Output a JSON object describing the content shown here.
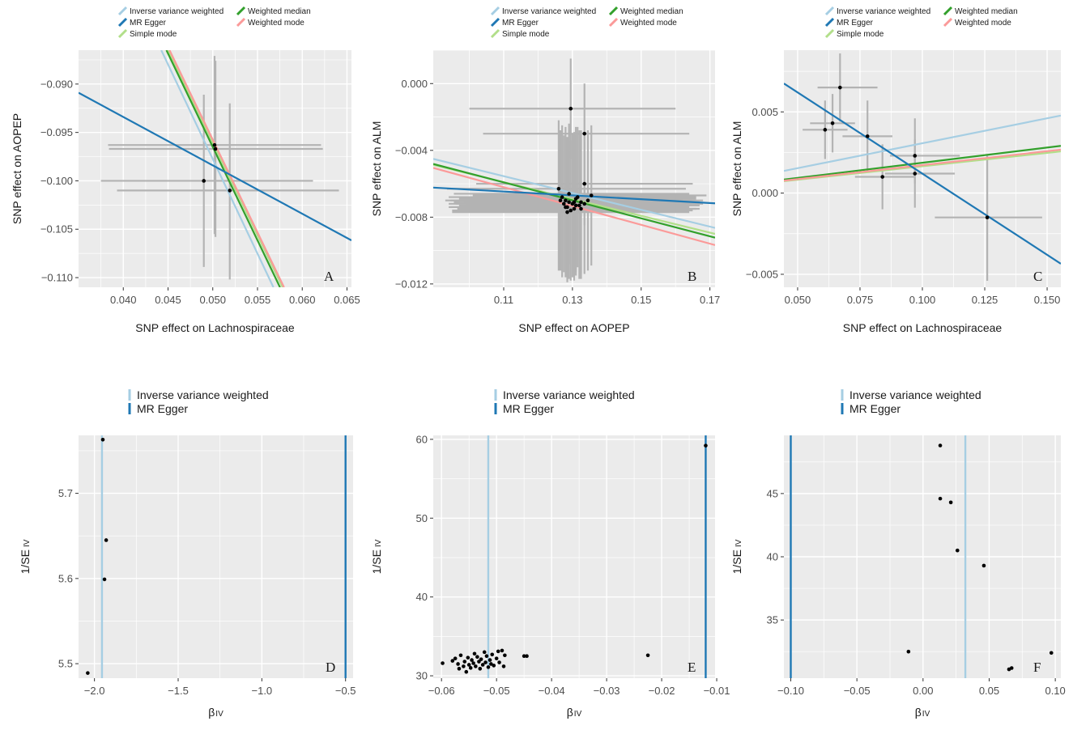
{
  "colors": {
    "panel_bg": "#ebebeb",
    "grid": "#ffffff",
    "errorbar": "#b3b3b3",
    "point": "#000000",
    "ivw": "#a6cee3",
    "egger": "#1f78b4",
    "simple_mode": "#b2df8a",
    "weighted_median": "#33a02c",
    "weighted_mode": "#fb9a99"
  },
  "chart_data": [
    {
      "id": "A",
      "type": "scatter",
      "letter": "A",
      "xlabel": "SNP effect on Lachnospiraceae",
      "ylabel": "SNP effect on AOPEP",
      "xlim": [
        0.035,
        0.0655
      ],
      "ylim": [
        -0.111,
        -0.0865
      ],
      "xticks": [
        0.04,
        0.045,
        0.05,
        0.055,
        0.06,
        0.065
      ],
      "xtick_labels": [
        "0.040",
        "0.045",
        "0.050",
        "0.055",
        "0.060",
        "0.065"
      ],
      "yticks": [
        -0.09,
        -0.095,
        -0.1,
        -0.105,
        -0.11
      ],
      "ytick_labels": [
        "−0.090",
        "−0.095",
        "−0.100",
        "−0.105",
        "−0.110"
      ],
      "points": [
        {
          "x": 0.049,
          "y": -0.1,
          "x_lo": 0.0375,
          "x_hi": 0.0612,
          "y_lo": -0.1089,
          "y_hi": -0.0911
        },
        {
          "x": 0.0502,
          "y": -0.0963,
          "x_lo": 0.0383,
          "x_hi": 0.0621,
          "y_lo": -0.1055,
          "y_hi": -0.0871
        },
        {
          "x": 0.0503,
          "y": -0.0967,
          "x_lo": 0.0384,
          "x_hi": 0.0623,
          "y_lo": -0.1058,
          "y_hi": -0.0876
        },
        {
          "x": 0.0519,
          "y": -0.101,
          "x_lo": 0.0393,
          "x_hi": 0.0641,
          "y_lo": -0.1102,
          "y_hi": -0.092
        }
      ],
      "lines": [
        {
          "method": "Simple mode",
          "slope": -1.915,
          "intercept": -0.0003
        },
        {
          "method": "Inverse variance weighted",
          "slope": -1.955,
          "intercept": 0.0
        },
        {
          "method": "Weighted median",
          "slope": -1.93,
          "intercept": 0.0
        },
        {
          "method": "Weighted mode",
          "slope": -1.915,
          "intercept": 0.0
        },
        {
          "method": "MR Egger",
          "slope": -0.5,
          "intercept": -0.0734
        }
      ],
      "legend": [
        "Inverse variance weighted",
        "MR Egger",
        "Simple mode",
        "Weighted median",
        "Weighted mode"
      ]
    },
    {
      "id": "B",
      "type": "scatter",
      "letter": "B",
      "xlabel": "SNP effect on AOPEP",
      "ylabel": "SNP effect on ALM",
      "xlim": [
        0.0895,
        0.1715
      ],
      "ylim": [
        -0.0122,
        0.002
      ],
      "xticks": [
        0.11,
        0.13,
        0.15,
        0.17
      ],
      "xtick_labels": [
        "0.11",
        "0.13",
        "0.15",
        "0.17"
      ],
      "yticks": [
        0.0,
        -0.004,
        -0.008,
        -0.012
      ],
      "ytick_labels": [
        "0.000",
        "−0.004",
        "−0.008",
        "−0.012"
      ],
      "points": [
        {
          "x": 0.1295,
          "y": -0.0015,
          "x_lo": 0.1,
          "x_hi": 0.16,
          "y_lo": -0.0045,
          "y_hi": 0.0015
        },
        {
          "x": 0.1335,
          "y": -0.003,
          "x_lo": 0.104,
          "x_hi": 0.164,
          "y_lo": -0.006,
          "y_hi": 0.0
        },
        {
          "x": 0.1335,
          "y": -0.006,
          "x_lo": 0.102,
          "x_hi": 0.165,
          "y_lo": -0.0085,
          "y_hi": -0.0035
        },
        {
          "x": 0.126,
          "y": -0.0063,
          "x_lo": 0.0935,
          "x_hi": 0.163,
          "y_lo": -0.0112,
          "y_hi": -0.0022
        },
        {
          "x": 0.127,
          "y": -0.0068,
          "x_lo": 0.094,
          "x_hi": 0.164,
          "y_lo": -0.0116,
          "y_hi": -0.0025
        },
        {
          "x": 0.128,
          "y": -0.007,
          "x_lo": 0.0945,
          "x_hi": 0.165,
          "y_lo": -0.0113,
          "y_hi": -0.0026
        },
        {
          "x": 0.129,
          "y": -0.0071,
          "x_lo": 0.0955,
          "x_hi": 0.165,
          "y_lo": -0.0117,
          "y_hi": -0.0028
        },
        {
          "x": 0.13,
          "y": -0.0072,
          "x_lo": 0.096,
          "x_hi": 0.166,
          "y_lo": -0.0116,
          "y_hi": -0.003
        },
        {
          "x": 0.131,
          "y": -0.0069,
          "x_lo": 0.097,
          "x_hi": 0.166,
          "y_lo": -0.0113,
          "y_hi": -0.0026
        },
        {
          "x": 0.132,
          "y": -0.0073,
          "x_lo": 0.098,
          "x_hi": 0.167,
          "y_lo": -0.0117,
          "y_hi": -0.0028
        },
        {
          "x": 0.1285,
          "y": -0.0074,
          "x_lo": 0.0945,
          "x_hi": 0.164,
          "y_lo": -0.0116,
          "y_hi": -0.0032
        },
        {
          "x": 0.1305,
          "y": -0.0075,
          "x_lo": 0.0965,
          "x_hi": 0.166,
          "y_lo": -0.0118,
          "y_hi": -0.0033
        },
        {
          "x": 0.1325,
          "y": -0.0071,
          "x_lo": 0.0985,
          "x_hi": 0.167,
          "y_lo": -0.0114,
          "y_hi": -0.0028
        },
        {
          "x": 0.1275,
          "y": -0.0072,
          "x_lo": 0.094,
          "x_hi": 0.163,
          "y_lo": -0.0113,
          "y_hi": -0.0031
        },
        {
          "x": 0.1295,
          "y": -0.0076,
          "x_lo": 0.095,
          "x_hi": 0.165,
          "y_lo": -0.0118,
          "y_hi": -0.0034
        },
        {
          "x": 0.1315,
          "y": -0.0068,
          "x_lo": 0.0975,
          "x_hi": 0.166,
          "y_lo": -0.011,
          "y_hi": -0.0026
        },
        {
          "x": 0.1335,
          "y": -0.0072,
          "x_lo": 0.099,
          "x_hi": 0.168,
          "y_lo": -0.0114,
          "y_hi": -0.003
        },
        {
          "x": 0.1345,
          "y": -0.007,
          "x_lo": 0.1,
          "x_hi": 0.168,
          "y_lo": -0.0112,
          "y_hi": -0.0028
        },
        {
          "x": 0.1265,
          "y": -0.007,
          "x_lo": 0.093,
          "x_hi": 0.162,
          "y_lo": -0.0112,
          "y_hi": -0.0028
        },
        {
          "x": 0.129,
          "y": -0.0066,
          "x_lo": 0.0955,
          "x_hi": 0.164,
          "y_lo": -0.0108,
          "y_hi": -0.0024
        },
        {
          "x": 0.1305,
          "y": -0.0071,
          "x_lo": 0.097,
          "x_hi": 0.165,
          "y_lo": -0.0113,
          "y_hi": -0.0029
        },
        {
          "x": 0.1285,
          "y": -0.0077,
          "x_lo": 0.095,
          "x_hi": 0.164,
          "y_lo": -0.0119,
          "y_hi": -0.0035
        },
        {
          "x": 0.1325,
          "y": -0.0075,
          "x_lo": 0.099,
          "x_hi": 0.167,
          "y_lo": -0.0117,
          "y_hi": -0.0033
        },
        {
          "x": 0.131,
          "y": -0.0073,
          "x_lo": 0.097,
          "x_hi": 0.166,
          "y_lo": -0.0115,
          "y_hi": -0.0031
        },
        {
          "x": 0.1355,
          "y": -0.0067,
          "x_lo": 0.101,
          "x_hi": 0.169,
          "y_lo": -0.0109,
          "y_hi": -0.0025
        },
        {
          "x": 0.128,
          "y": -0.0074,
          "x_lo": 0.094,
          "x_hi": 0.163,
          "y_lo": -0.0116,
          "y_hi": -0.0032
        }
      ],
      "lines": [
        {
          "method": "Simple mode",
          "slope": -0.0504,
          "intercept": -0.00036
        },
        {
          "method": "Inverse variance weighted",
          "slope": -0.0504,
          "intercept": 0.0
        },
        {
          "method": "Weighted median",
          "slope": -0.0538,
          "intercept": 0.0
        },
        {
          "method": "Weighted mode",
          "slope": -0.0564,
          "intercept": 0.0
        },
        {
          "method": "MR Egger",
          "slope": -0.0115,
          "intercept": -0.0052
        }
      ],
      "legend": [
        "Inverse variance weighted",
        "MR Egger",
        "Simple mode",
        "Weighted median",
        "Weighted mode"
      ]
    },
    {
      "id": "C",
      "type": "scatter",
      "letter": "C",
      "xlabel": "SNP effect on Lachnospiraceae",
      "ylabel": "SNP effect on ALM",
      "xlim": [
        0.0445,
        0.1555
      ],
      "ylim": [
        -0.0058,
        0.0088
      ],
      "xticks": [
        0.05,
        0.075,
        0.1,
        0.125,
        0.15
      ],
      "xtick_labels": [
        "0.050",
        "0.075",
        "0.100",
        "0.125",
        "0.150"
      ],
      "yticks": [
        0.005,
        0.0,
        -0.005
      ],
      "ytick_labels": [
        "0.005",
        "0.000",
        "−0.005"
      ],
      "points": [
        {
          "x": 0.061,
          "y": 0.0039,
          "x_lo": 0.052,
          "x_hi": 0.07,
          "y_lo": 0.0021,
          "y_hi": 0.0057
        },
        {
          "x": 0.064,
          "y": 0.0043,
          "x_lo": 0.055,
          "x_hi": 0.073,
          "y_lo": 0.0025,
          "y_hi": 0.0061
        },
        {
          "x": 0.067,
          "y": 0.0065,
          "x_lo": 0.058,
          "x_hi": 0.082,
          "y_lo": 0.0044,
          "y_hi": 0.0086
        },
        {
          "x": 0.078,
          "y": 0.0035,
          "x_lo": 0.068,
          "x_hi": 0.088,
          "y_lo": 0.0013,
          "y_hi": 0.0057
        },
        {
          "x": 0.084,
          "y": 0.001,
          "x_lo": 0.073,
          "x_hi": 0.097,
          "y_lo": -0.001,
          "y_hi": 0.003
        },
        {
          "x": 0.097,
          "y": 0.0023,
          "x_lo": 0.087,
          "x_hi": 0.115,
          "y_lo": 0.0006,
          "y_hi": 0.0046
        },
        {
          "x": 0.097,
          "y": 0.0012,
          "x_lo": 0.085,
          "x_hi": 0.113,
          "y_lo": -0.0009,
          "y_hi": 0.0033
        },
        {
          "x": 0.126,
          "y": -0.0015,
          "x_lo": 0.105,
          "x_hi": 0.148,
          "y_lo": -0.0054,
          "y_hi": 0.0023
        }
      ],
      "lines": [
        {
          "method": "Simple mode",
          "slope": 0.0165,
          "intercept": 0.0
        },
        {
          "method": "Inverse variance weighted",
          "slope": 0.0307,
          "intercept": 0.0
        },
        {
          "method": "Weighted median",
          "slope": 0.0187,
          "intercept": 0.0
        },
        {
          "method": "Weighted mode",
          "slope": 0.0172,
          "intercept": 0.0
        },
        {
          "method": "MR Egger",
          "slope": -0.1,
          "intercept": 0.0112
        }
      ],
      "legend": [
        "Inverse variance weighted",
        "MR Egger",
        "Simple mode",
        "Weighted median",
        "Weighted mode"
      ]
    },
    {
      "id": "D",
      "type": "scatter",
      "letter": "D",
      "xlabel": "β",
      "xlabel_sub": "IV",
      "ylabel": "1/SE",
      "ylabel_sub": "IV",
      "xlim": [
        -2.095,
        -0.455
      ],
      "ylim": [
        5.483,
        5.768
      ],
      "xticks": [
        -2.0,
        -1.5,
        -1.0,
        -0.5
      ],
      "xtick_labels": [
        "−2.0",
        "−1.5",
        "−1.0",
        "−0.5"
      ],
      "yticks": [
        5.5,
        5.6,
        5.7
      ],
      "ytick_labels": [
        "5.5",
        "5.6",
        "5.7"
      ],
      "points": [
        {
          "x": -2.04,
          "y": 5.489
        },
        {
          "x": -1.94,
          "y": 5.599
        },
        {
          "x": -1.93,
          "y": 5.645
        },
        {
          "x": -1.95,
          "y": 5.763
        }
      ],
      "vlines": [
        {
          "method": "Inverse variance weighted",
          "x": -1.955
        },
        {
          "method": "MR Egger",
          "x": -0.5
        }
      ],
      "legend": [
        "Inverse variance weighted",
        "MR Egger"
      ]
    },
    {
      "id": "E",
      "type": "scatter",
      "letter": "E",
      "xlabel": "β",
      "xlabel_sub": "IV",
      "ylabel": "1/SE",
      "ylabel_sub": "IV",
      "xlim": [
        -0.0615,
        -0.0103
      ],
      "ylim": [
        29.7,
        60.5
      ],
      "xticks": [
        -0.06,
        -0.05,
        -0.04,
        -0.03,
        -0.02,
        -0.01
      ],
      "xtick_labels": [
        "−0.06",
        "−0.05",
        "−0.04",
        "−0.03",
        "−0.02",
        "−0.01"
      ],
      "yticks": [
        30,
        40,
        50,
        60
      ],
      "ytick_labels": [
        "30",
        "40",
        "50",
        "60"
      ],
      "points": [
        {
          "x": -0.0598,
          "y": 31.6
        },
        {
          "x": -0.058,
          "y": 31.9
        },
        {
          "x": -0.0575,
          "y": 32.2
        },
        {
          "x": -0.057,
          "y": 31.5
        },
        {
          "x": -0.0568,
          "y": 30.9
        },
        {
          "x": -0.0565,
          "y": 32.6
        },
        {
          "x": -0.056,
          "y": 31.2
        },
        {
          "x": -0.0558,
          "y": 31.8
        },
        {
          "x": -0.0555,
          "y": 30.5
        },
        {
          "x": -0.0552,
          "y": 32.3
        },
        {
          "x": -0.055,
          "y": 31.4
        },
        {
          "x": -0.0547,
          "y": 31.0
        },
        {
          "x": -0.0545,
          "y": 32.0
        },
        {
          "x": -0.0542,
          "y": 31.6
        },
        {
          "x": -0.054,
          "y": 32.8
        },
        {
          "x": -0.0538,
          "y": 31.2
        },
        {
          "x": -0.0535,
          "y": 32.4
        },
        {
          "x": -0.0532,
          "y": 31.8
        },
        {
          "x": -0.053,
          "y": 30.9
        },
        {
          "x": -0.0528,
          "y": 32.1
        },
        {
          "x": -0.0525,
          "y": 31.4
        },
        {
          "x": -0.0522,
          "y": 33.0
        },
        {
          "x": -0.052,
          "y": 31.7
        },
        {
          "x": -0.0518,
          "y": 32.5
        },
        {
          "x": -0.0515,
          "y": 31.1
        },
        {
          "x": -0.0512,
          "y": 32.0
        },
        {
          "x": -0.051,
          "y": 31.5
        },
        {
          "x": -0.0508,
          "y": 32.7
        },
        {
          "x": -0.0505,
          "y": 31.3
        },
        {
          "x": -0.05,
          "y": 32.2
        },
        {
          "x": -0.0497,
          "y": 33.1
        },
        {
          "x": -0.0495,
          "y": 31.7
        },
        {
          "x": -0.049,
          "y": 33.2
        },
        {
          "x": -0.0487,
          "y": 31.2
        },
        {
          "x": -0.0485,
          "y": 32.6
        },
        {
          "x": -0.045,
          "y": 32.5
        },
        {
          "x": -0.0445,
          "y": 32.5
        },
        {
          "x": -0.0225,
          "y": 32.6
        },
        {
          "x": -0.012,
          "y": 59.2
        }
      ],
      "vlines": [
        {
          "method": "Inverse variance weighted",
          "x": -0.0515
        },
        {
          "method": "MR Egger",
          "x": -0.012
        }
      ],
      "legend": [
        "Inverse variance weighted",
        "MR Egger"
      ]
    },
    {
      "id": "F",
      "type": "scatter",
      "letter": "F",
      "xlabel": "β",
      "xlabel_sub": "IV",
      "ylabel": "1/SE",
      "ylabel_sub": "IV",
      "xlim": [
        -0.1052,
        0.1042
      ],
      "ylim": [
        30.4,
        49.6
      ],
      "xticks": [
        -0.1,
        -0.05,
        0.0,
        0.05,
        0.1
      ],
      "xtick_labels": [
        "−0.10",
        "−0.05",
        "0.00",
        "0.05",
        "0.10"
      ],
      "yticks": [
        35,
        40,
        45
      ],
      "ytick_labels": [
        "35",
        "40",
        "45"
      ],
      "points": [
        {
          "x": 0.013,
          "y": 48.8
        },
        {
          "x": 0.013,
          "y": 44.6
        },
        {
          "x": 0.021,
          "y": 44.3
        },
        {
          "x": 0.026,
          "y": 40.5
        },
        {
          "x": 0.046,
          "y": 39.3
        },
        {
          "x": -0.011,
          "y": 32.5
        },
        {
          "x": 0.065,
          "y": 31.1
        },
        {
          "x": 0.067,
          "y": 31.2
        },
        {
          "x": 0.097,
          "y": 32.4
        }
      ],
      "vlines": [
        {
          "method": "Inverse variance weighted",
          "x": 0.032
        },
        {
          "method": "MR Egger",
          "x": -0.1
        }
      ],
      "legend": [
        "Inverse variance weighted",
        "MR Egger"
      ]
    }
  ]
}
